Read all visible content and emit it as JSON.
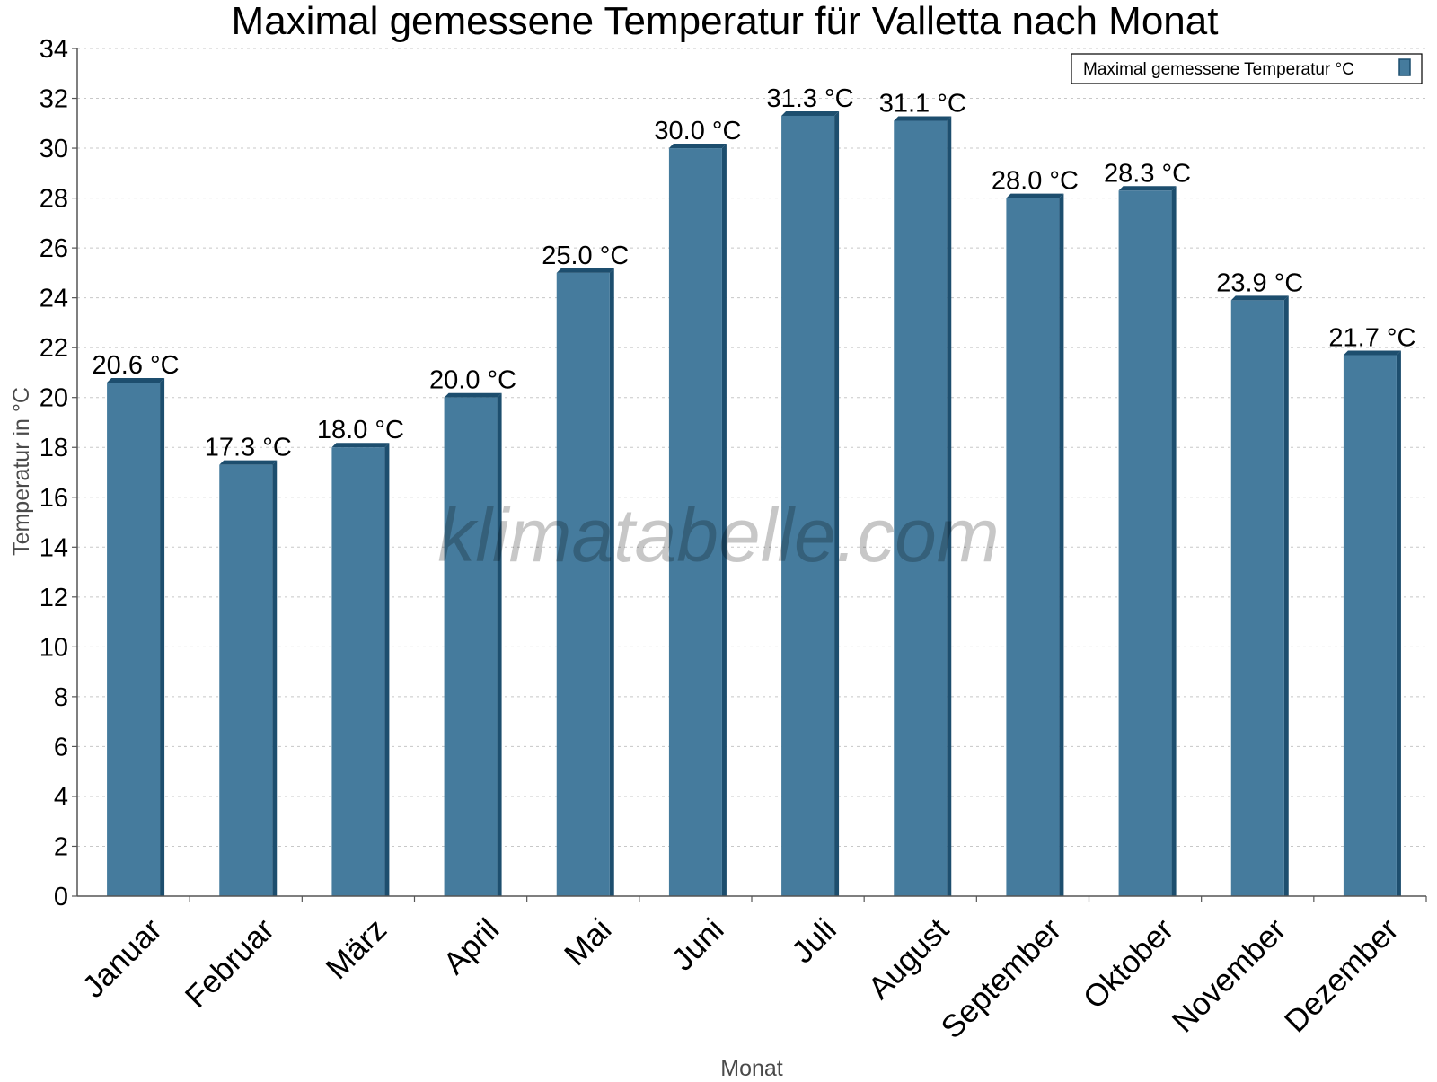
{
  "chart_data": {
    "type": "bar",
    "title": "Maximal gemessene Temperatur für Valletta nach Monat",
    "xlabel": "Monat",
    "ylabel": "Temperatur in °C",
    "categories": [
      "Januar",
      "Februar",
      "März",
      "April",
      "Mai",
      "Juni",
      "Juli",
      "August",
      "September",
      "Oktober",
      "November",
      "Dezember"
    ],
    "series": [
      {
        "name": "Maximal gemessene Temperatur °C",
        "values": [
          20.6,
          17.3,
          18.0,
          20.0,
          25.0,
          30.0,
          31.3,
          31.1,
          28.0,
          28.3,
          23.9,
          21.7
        ],
        "data_labels": [
          "20.6 °C",
          "17.3 °C",
          "18.0 °C",
          "20.0 °C",
          "25.0 °C",
          "30.0 °C",
          "31.3 °C",
          "31.1 °C",
          "28.0 °C",
          "28.3 °C",
          "23.9 °C",
          "21.7 °C"
        ]
      }
    ],
    "ylim": [
      0,
      34
    ],
    "yticks": [
      0,
      2,
      4,
      6,
      8,
      10,
      12,
      14,
      16,
      18,
      20,
      22,
      24,
      26,
      28,
      30,
      32,
      34
    ],
    "grid": true,
    "legend_position": "top-right",
    "watermark": "klimatabelle.com",
    "colors": {
      "bar": "#457b9d",
      "bar_side": "#1d4e6e",
      "grid": "#c8c8c8",
      "axis": "#555555",
      "axis_label": "#4a4a4a"
    }
  }
}
